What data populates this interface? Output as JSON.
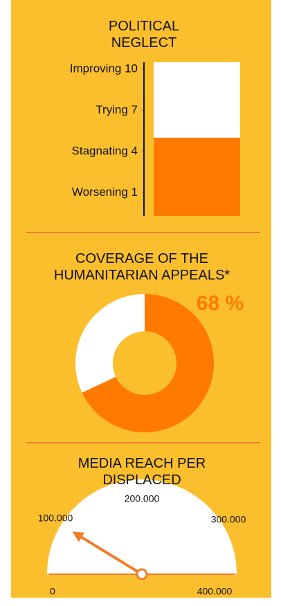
{
  "chart_data": [
    {
      "type": "level",
      "title": "POLITICAL NEGLECT",
      "values": [
        5
      ],
      "color": "#ff7a00",
      "background": "#ffffff",
      "ylim": [
        -0.7,
        10.5
      ],
      "yticks": [
        {
          "value": 10,
          "label": "Improving 10"
        },
        {
          "value": 7,
          "label": "Trying 7"
        },
        {
          "value": 4,
          "label": "Stagnating 4"
        },
        {
          "value": 1,
          "label": "Worsening 1"
        }
      ]
    },
    {
      "type": "donut",
      "title": "COVERAGE OF THE HUMANITARIAN APPEALS*",
      "values": [
        68,
        32
      ],
      "value_labels": [
        "68 %"
      ],
      "colors": [
        "#ff7a00",
        "#ffffff"
      ]
    },
    {
      "type": "gauge",
      "title": "MEDIA REACH PER DISPLACED",
      "values": [
        70000
      ],
      "color": "#f07d2a",
      "xlim": [
        0,
        400000
      ],
      "xticks": [
        {
          "value": 0,
          "label": "0"
        },
        {
          "value": 100000,
          "label": "100.000"
        },
        {
          "value": 200000,
          "label": "200.000"
        },
        {
          "value": 300000,
          "label": "300.000"
        },
        {
          "value": 400000,
          "label": "400.000"
        }
      ]
    }
  ]
}
